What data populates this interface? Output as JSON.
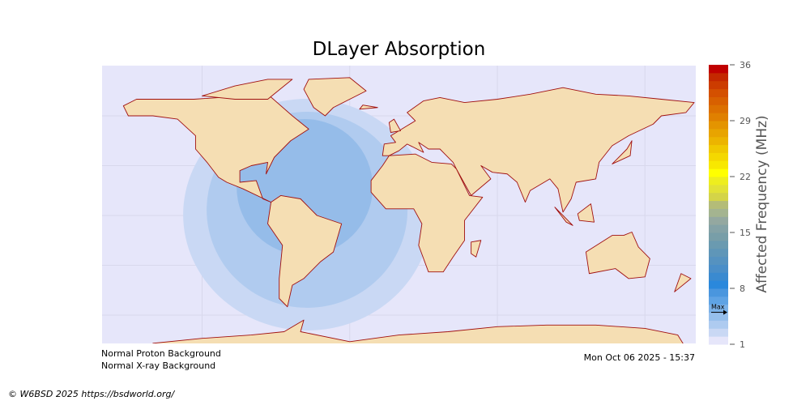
{
  "chart_data": {
    "type": "heatmap",
    "title": "DLayer Absorption",
    "colorbar": {
      "label": "Affected Frequency (MHz)",
      "range": [
        1,
        36
      ],
      "ticks": [
        "36",
        "29",
        "22",
        "15",
        "8",
        "1"
      ],
      "tick_values": [
        36,
        29,
        22,
        15,
        8,
        1
      ],
      "marker_label": "Max",
      "marker_value": 5,
      "colors": [
        "#e6e6fa",
        "#c9d8f4",
        "#aecbf0",
        "#96bfec",
        "#7cb2e8",
        "#5fa3e4",
        "#4a96de",
        "#2a88dc",
        "#3a8ad0",
        "#4a8ec8",
        "#5592c0",
        "#5f96b8",
        "#6a9ab0",
        "#789ea8",
        "#84a2a6",
        "#94a8a0",
        "#a4b490",
        "#b4bc78",
        "#d4d448",
        "#e2e236",
        "#eeee1e",
        "#ffff00",
        "#f8e800",
        "#f4d800",
        "#f0c800",
        "#ecb400",
        "#e8a400",
        "#e49400",
        "#e08000",
        "#dc7000",
        "#d86000",
        "#d45000",
        "#cc3c00",
        "#c42800",
        "#c00000"
      ]
    },
    "absorption_levels": [
      {
        "min_mhz": 2,
        "color": "#c9d8f4"
      },
      {
        "min_mhz": 3,
        "color": "#b0cbef"
      },
      {
        "min_mhz": 4,
        "color": "#95bce9"
      }
    ],
    "map": {
      "ocean_color": "#e6e6fa",
      "land_color": "#f5deb3",
      "coast_color": "#a01010"
    }
  },
  "status": {
    "proton": "Normal Proton Background",
    "xray": "Normal X-ray Background",
    "timestamp": "Mon Oct 06 2025 - 15:37"
  },
  "credit": "© W6BSD 2025 https://bsdworld.org/"
}
